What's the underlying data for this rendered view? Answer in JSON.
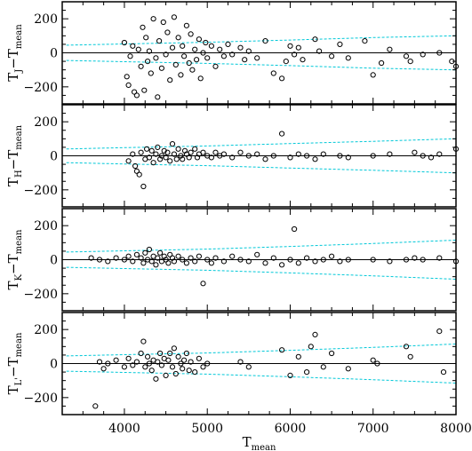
{
  "chart_data": {
    "type": "scatter",
    "layout": "4 vertically stacked panels sharing x axis",
    "xlabel": "T_mean",
    "xlim": [
      3250,
      8000
    ],
    "x_ticks": [
      4000,
      5000,
      6000,
      7000,
      8000
    ],
    "x_tick_labels": [
      "4000",
      "5000",
      "6000",
      "7000",
      "8000"
    ],
    "colors": {
      "points": "#000000",
      "zero_line": "#000000",
      "envelope": "#00c8d8",
      "frame": "#000000"
    },
    "panels": [
      {
        "ylabel_main": "T",
        "ylabel_sub": "J",
        "ylabel_rest": "−T",
        "ylabel_rest_sub": "mean",
        "ylim": [
          -300,
          300
        ],
        "y_ticks": [
          200,
          0,
          -200
        ],
        "y_tick_labels": [
          "200",
          "0",
          "−200"
        ],
        "envelope_upper": [
          [
            3300,
            45
          ],
          [
            4000,
            52
          ],
          [
            5000,
            62
          ],
          [
            6000,
            75
          ],
          [
            7000,
            90
          ],
          [
            8000,
            100
          ]
        ],
        "envelope_lower": [
          [
            3300,
            -45
          ],
          [
            4000,
            -52
          ],
          [
            5000,
            -62
          ],
          [
            6000,
            -75
          ],
          [
            7000,
            -90
          ],
          [
            8000,
            -100
          ]
        ],
        "points": [
          [
            4000,
            60
          ],
          [
            4030,
            -140
          ],
          [
            4050,
            -190
          ],
          [
            4070,
            -20
          ],
          [
            4100,
            40
          ],
          [
            4120,
            -230
          ],
          [
            4150,
            -250
          ],
          [
            4170,
            20
          ],
          [
            4200,
            -80
          ],
          [
            4220,
            150
          ],
          [
            4240,
            -220
          ],
          [
            4260,
            90
          ],
          [
            4280,
            -50
          ],
          [
            4300,
            10
          ],
          [
            4320,
            -120
          ],
          [
            4350,
            200
          ],
          [
            4380,
            -30
          ],
          [
            4400,
            -260
          ],
          [
            4420,
            70
          ],
          [
            4450,
            -90
          ],
          [
            4470,
            180
          ],
          [
            4500,
            -10
          ],
          [
            4520,
            120
          ],
          [
            4550,
            -160
          ],
          [
            4580,
            30
          ],
          [
            4600,
            210
          ],
          [
            4620,
            -70
          ],
          [
            4650,
            90
          ],
          [
            4680,
            -130
          ],
          [
            4700,
            40
          ],
          [
            4720,
            -20
          ],
          [
            4750,
            160
          ],
          [
            4780,
            -60
          ],
          [
            4800,
            110
          ],
          [
            4820,
            -100
          ],
          [
            4850,
            20
          ],
          [
            4870,
            -40
          ],
          [
            4900,
            80
          ],
          [
            4920,
            -150
          ],
          [
            4950,
            0
          ],
          [
            4980,
            60
          ],
          [
            5000,
            -30
          ],
          [
            5050,
            40
          ],
          [
            5100,
            -80
          ],
          [
            5150,
            20
          ],
          [
            5200,
            -20
          ],
          [
            5250,
            50
          ],
          [
            5300,
            -10
          ],
          [
            5400,
            30
          ],
          [
            5450,
            -40
          ],
          [
            5500,
            10
          ],
          [
            5600,
            -30
          ],
          [
            5700,
            70
          ],
          [
            5800,
            -120
          ],
          [
            5900,
            -150
          ],
          [
            5950,
            -50
          ],
          [
            6000,
            40
          ],
          [
            6050,
            -10
          ],
          [
            6100,
            30
          ],
          [
            6150,
            -40
          ],
          [
            6300,
            80
          ],
          [
            6350,
            10
          ],
          [
            6500,
            -20
          ],
          [
            6600,
            50
          ],
          [
            6700,
            -30
          ],
          [
            6900,
            70
          ],
          [
            7000,
            -130
          ],
          [
            7100,
            -60
          ],
          [
            7200,
            20
          ],
          [
            7400,
            -20
          ],
          [
            7450,
            -50
          ],
          [
            7600,
            -10
          ],
          [
            7800,
            0
          ],
          [
            7950,
            -50
          ],
          [
            8000,
            -80
          ]
        ]
      },
      {
        "ylabel_main": "T",
        "ylabel_sub": "H",
        "ylabel_rest": "−T",
        "ylabel_rest_sub": "mean",
        "ylim": [
          -300,
          300
        ],
        "y_ticks": [
          200,
          0,
          -200
        ],
        "y_tick_labels": [
          "200",
          "0",
          "−200"
        ],
        "envelope_upper": [
          [
            3300,
            40
          ],
          [
            4000,
            48
          ],
          [
            5000,
            58
          ],
          [
            6000,
            72
          ],
          [
            7000,
            85
          ],
          [
            8000,
            100
          ]
        ],
        "envelope_lower": [
          [
            3300,
            -40
          ],
          [
            4000,
            -48
          ],
          [
            5000,
            -58
          ],
          [
            6000,
            -72
          ],
          [
            7000,
            -85
          ],
          [
            8000,
            -100
          ]
        ],
        "points": [
          [
            4050,
            -30
          ],
          [
            4100,
            10
          ],
          [
            4130,
            -60
          ],
          [
            4150,
            -90
          ],
          [
            4180,
            -110
          ],
          [
            4200,
            20
          ],
          [
            4230,
            -180
          ],
          [
            4250,
            -20
          ],
          [
            4270,
            40
          ],
          [
            4300,
            -10
          ],
          [
            4330,
            30
          ],
          [
            4350,
            -40
          ],
          [
            4380,
            10
          ],
          [
            4400,
            50
          ],
          [
            4430,
            -20
          ],
          [
            4450,
            0
          ],
          [
            4480,
            30
          ],
          [
            4500,
            -10
          ],
          [
            4520,
            20
          ],
          [
            4550,
            -30
          ],
          [
            4580,
            70
          ],
          [
            4600,
            10
          ],
          [
            4630,
            -20
          ],
          [
            4650,
            40
          ],
          [
            4680,
            0
          ],
          [
            4700,
            -20
          ],
          [
            4730,
            30
          ],
          [
            4750,
            10
          ],
          [
            4780,
            -10
          ],
          [
            4800,
            20
          ],
          [
            4850,
            40
          ],
          [
            4880,
            -10
          ],
          [
            4900,
            10
          ],
          [
            4950,
            20
          ],
          [
            5000,
            0
          ],
          [
            5050,
            -10
          ],
          [
            5100,
            20
          ],
          [
            5150,
            0
          ],
          [
            5200,
            10
          ],
          [
            5300,
            -10
          ],
          [
            5400,
            20
          ],
          [
            5500,
            0
          ],
          [
            5600,
            10
          ],
          [
            5700,
            -20
          ],
          [
            5800,
            0
          ],
          [
            5900,
            130
          ],
          [
            6000,
            -10
          ],
          [
            6100,
            10
          ],
          [
            6200,
            0
          ],
          [
            6300,
            -20
          ],
          [
            6400,
            10
          ],
          [
            6600,
            0
          ],
          [
            6700,
            -10
          ],
          [
            7000,
            0
          ],
          [
            7200,
            10
          ],
          [
            7500,
            20
          ],
          [
            7600,
            0
          ],
          [
            7700,
            -10
          ],
          [
            7800,
            10
          ],
          [
            8000,
            40
          ]
        ]
      },
      {
        "ylabel_main": "T",
        "ylabel_sub": "K",
        "ylabel_rest": "−T",
        "ylabel_rest_sub": "mean",
        "ylim": [
          -300,
          300
        ],
        "y_ticks": [
          200,
          0,
          -200
        ],
        "y_tick_labels": [
          "200",
          "0",
          "−200"
        ],
        "envelope_upper": [
          [
            3300,
            45
          ],
          [
            4000,
            52
          ],
          [
            5000,
            62
          ],
          [
            6000,
            78
          ],
          [
            7000,
            95
          ],
          [
            8000,
            115
          ]
        ],
        "envelope_lower": [
          [
            3300,
            -45
          ],
          [
            4000,
            -52
          ],
          [
            5000,
            -62
          ],
          [
            6000,
            -78
          ],
          [
            7000,
            -95
          ],
          [
            8000,
            -115
          ]
        ],
        "points": [
          [
            3600,
            10
          ],
          [
            3700,
            0
          ],
          [
            3800,
            -10
          ],
          [
            3900,
            10
          ],
          [
            4000,
            0
          ],
          [
            4050,
            20
          ],
          [
            4100,
            -10
          ],
          [
            4150,
            30
          ],
          [
            4200,
            10
          ],
          [
            4230,
            -20
          ],
          [
            4250,
            40
          ],
          [
            4280,
            0
          ],
          [
            4300,
            60
          ],
          [
            4330,
            -10
          ],
          [
            4350,
            20
          ],
          [
            4380,
            -30
          ],
          [
            4400,
            10
          ],
          [
            4430,
            40
          ],
          [
            4450,
            -10
          ],
          [
            4480,
            20
          ],
          [
            4500,
            0
          ],
          [
            4530,
            -20
          ],
          [
            4550,
            30
          ],
          [
            4580,
            10
          ],
          [
            4600,
            -10
          ],
          [
            4650,
            20
          ],
          [
            4700,
            0
          ],
          [
            4750,
            -20
          ],
          [
            4800,
            10
          ],
          [
            4850,
            -10
          ],
          [
            4900,
            20
          ],
          [
            4950,
            -140
          ],
          [
            5000,
            0
          ],
          [
            5050,
            -20
          ],
          [
            5100,
            10
          ],
          [
            5200,
            -10
          ],
          [
            5300,
            20
          ],
          [
            5400,
            0
          ],
          [
            5500,
            -10
          ],
          [
            5600,
            30
          ],
          [
            5700,
            -20
          ],
          [
            5800,
            10
          ],
          [
            5900,
            -30
          ],
          [
            6000,
            0
          ],
          [
            6050,
            180
          ],
          [
            6100,
            -20
          ],
          [
            6200,
            10
          ],
          [
            6300,
            -10
          ],
          [
            6400,
            0
          ],
          [
            6500,
            20
          ],
          [
            6600,
            -10
          ],
          [
            6700,
            0
          ],
          [
            7000,
            0
          ],
          [
            7200,
            -10
          ],
          [
            7400,
            0
          ],
          [
            7500,
            10
          ],
          [
            7600,
            0
          ],
          [
            7800,
            10
          ],
          [
            8000,
            -10
          ]
        ]
      },
      {
        "ylabel_main": "T",
        "ylabel_sub": "L'",
        "ylabel_rest": "−T",
        "ylabel_rest_sub": "mean",
        "ylim": [
          -300,
          300
        ],
        "y_ticks": [
          200,
          0,
          -200
        ],
        "y_tick_labels": [
          "200",
          "0",
          "−200"
        ],
        "envelope_upper": [
          [
            3300,
            45
          ],
          [
            4000,
            52
          ],
          [
            5000,
            62
          ],
          [
            6000,
            78
          ],
          [
            7000,
            95
          ],
          [
            8000,
            115
          ]
        ],
        "envelope_lower": [
          [
            3300,
            -45
          ],
          [
            4000,
            -52
          ],
          [
            5000,
            -62
          ],
          [
            6000,
            -78
          ],
          [
            7000,
            -95
          ],
          [
            8000,
            -115
          ]
        ],
        "points": [
          [
            3650,
            -250
          ],
          [
            3700,
            10
          ],
          [
            3750,
            -30
          ],
          [
            3800,
            0
          ],
          [
            3900,
            20
          ],
          [
            4000,
            -20
          ],
          [
            4050,
            30
          ],
          [
            4100,
            -10
          ],
          [
            4150,
            10
          ],
          [
            4200,
            60
          ],
          [
            4230,
            130
          ],
          [
            4250,
            -20
          ],
          [
            4280,
            40
          ],
          [
            4300,
            0
          ],
          [
            4330,
            -40
          ],
          [
            4350,
            20
          ],
          [
            4380,
            -90
          ],
          [
            4400,
            10
          ],
          [
            4430,
            60
          ],
          [
            4450,
            -10
          ],
          [
            4480,
            30
          ],
          [
            4500,
            -70
          ],
          [
            4530,
            20
          ],
          [
            4550,
            60
          ],
          [
            4580,
            -20
          ],
          [
            4600,
            90
          ],
          [
            4620,
            -60
          ],
          [
            4650,
            40
          ],
          [
            4680,
            0
          ],
          [
            4700,
            -30
          ],
          [
            4720,
            20
          ],
          [
            4750,
            60
          ],
          [
            4780,
            -40
          ],
          [
            4800,
            10
          ],
          [
            4850,
            -50
          ],
          [
            4900,
            30
          ],
          [
            4950,
            -20
          ],
          [
            5000,
            0
          ],
          [
            5400,
            10
          ],
          [
            5500,
            -20
          ],
          [
            5900,
            80
          ],
          [
            6000,
            -70
          ],
          [
            6100,
            40
          ],
          [
            6200,
            -50
          ],
          [
            6250,
            100
          ],
          [
            6300,
            170
          ],
          [
            6400,
            -20
          ],
          [
            6500,
            60
          ],
          [
            6700,
            -30
          ],
          [
            7000,
            20
          ],
          [
            7050,
            0
          ],
          [
            7400,
            100
          ],
          [
            7450,
            40
          ],
          [
            7800,
            190
          ],
          [
            7850,
            -50
          ]
        ]
      }
    ]
  }
}
